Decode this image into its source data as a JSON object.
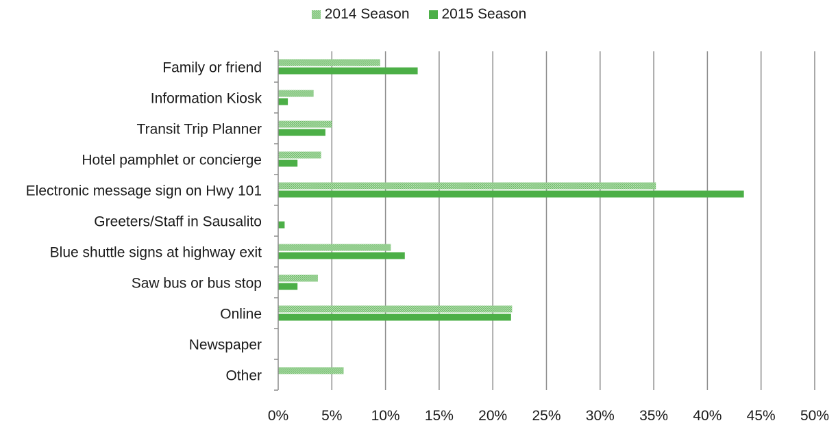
{
  "chart_data": {
    "type": "bar",
    "orientation": "horizontal",
    "categories": [
      "Family or friend",
      "Information Kiosk",
      "Transit Trip Planner",
      "Hotel pamphlet or concierge",
      "Electronic message sign on Hwy 101",
      "Greeters/Staff in Sausalito",
      "Blue shuttle signs at highway exit",
      "Saw bus or bus stop",
      "Online",
      "Newspaper",
      "Other"
    ],
    "series": [
      {
        "name": "2014 Season",
        "color": "#7cc47a",
        "pattern": "dotted",
        "values": [
          9.5,
          3.3,
          5.0,
          4.0,
          35.2,
          0,
          10.5,
          3.7,
          21.8,
          0,
          6.1
        ]
      },
      {
        "name": "2015 Season",
        "color": "#4caf47",
        "pattern": "solid",
        "values": [
          13.0,
          0.9,
          4.4,
          1.8,
          43.4,
          0.6,
          11.8,
          1.8,
          21.7,
          0,
          0
        ]
      }
    ],
    "xlim": [
      0,
      50
    ],
    "x_ticks": [
      "0%",
      "5%",
      "10%",
      "15%",
      "20%",
      "25%",
      "30%",
      "35%",
      "40%",
      "45%",
      "50%"
    ],
    "grid": "vertical",
    "legend_position": "top-center"
  }
}
